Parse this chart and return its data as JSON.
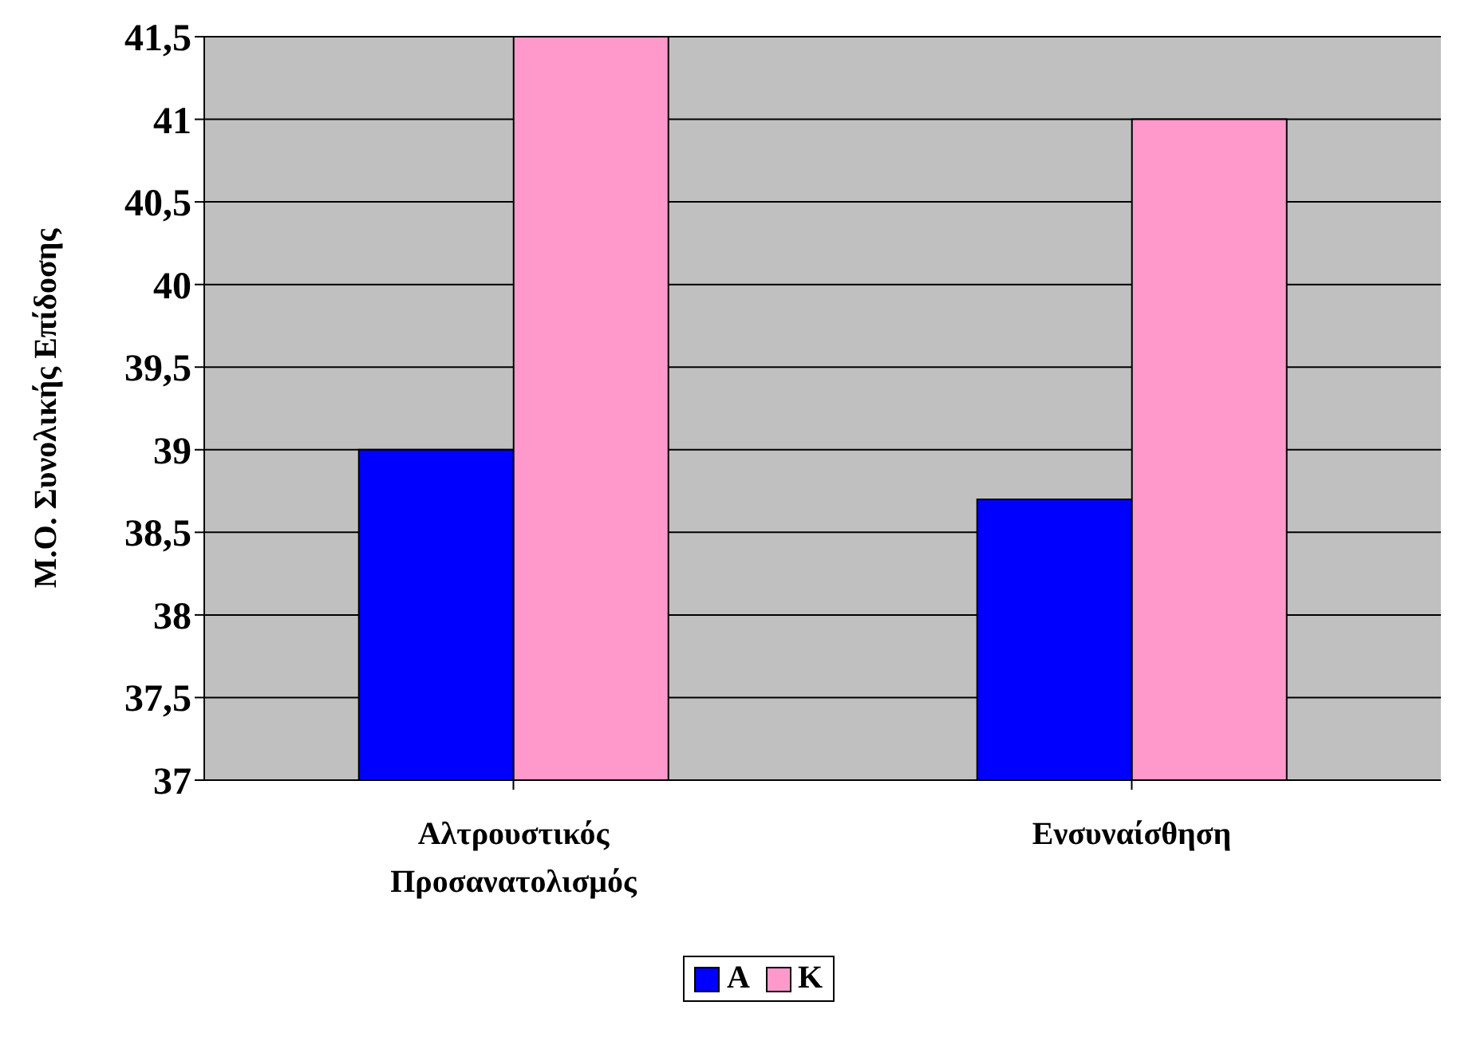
{
  "chart_data": {
    "type": "bar",
    "ylabel": "Μ.Ο. Συνολικής Επίδοσης",
    "categories": [
      "Αλτρουστικός Προσανατολισμός",
      "Ενσυναίσθηση"
    ],
    "series": [
      {
        "name": "Α",
        "color": "#0000ff",
        "values": [
          39,
          38.7
        ]
      },
      {
        "name": "Κ",
        "color": "#ff99cc",
        "values": [
          41.5,
          41
        ]
      }
    ],
    "ylim": [
      37,
      41.5
    ],
    "yticks": [
      37,
      {
        "value": 37.5,
        "label": "37,5"
      },
      38,
      {
        "value": 38.5,
        "label": "38,5"
      },
      39,
      {
        "value": 39.5,
        "label": "39,5"
      },
      40,
      {
        "value": 40.5,
        "label": "40,5"
      },
      41,
      {
        "value": 41.5,
        "label": "41,5"
      }
    ],
    "grid": "y",
    "legend": "bottom"
  }
}
